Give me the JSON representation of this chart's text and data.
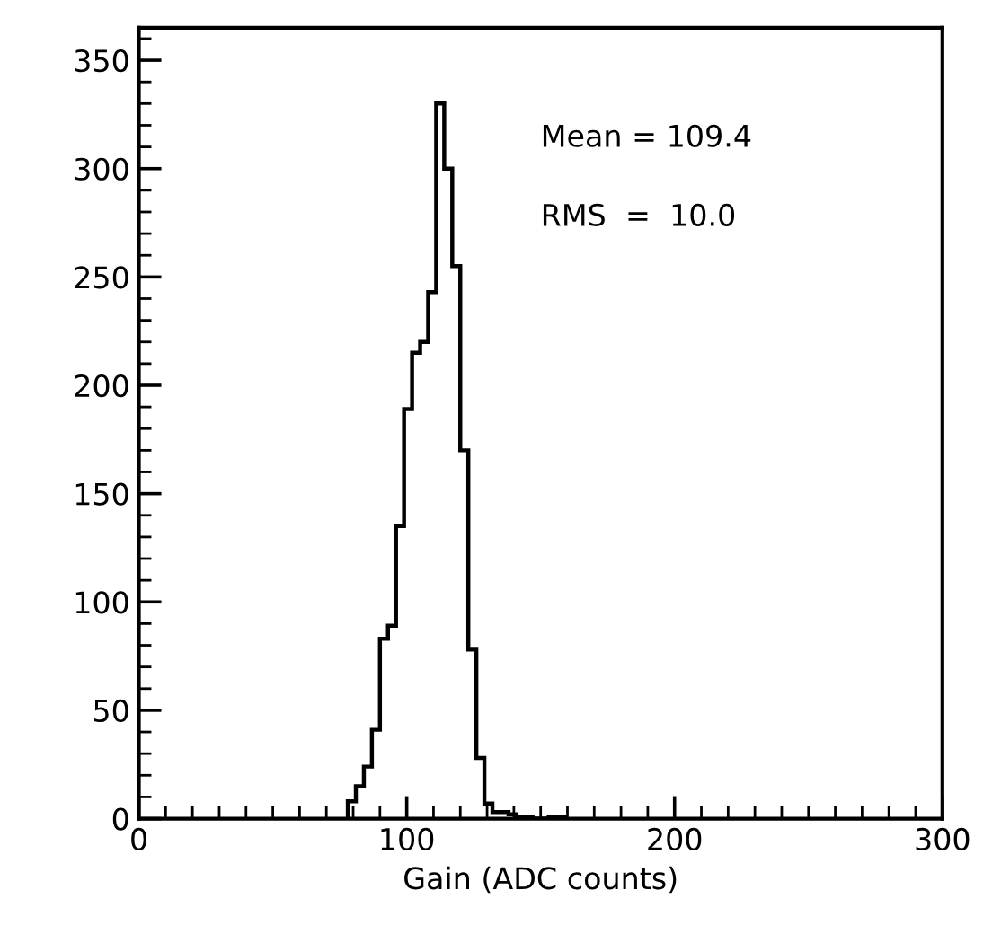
{
  "chart_data": {
    "type": "histogram",
    "xlabel": "Gain (ADC counts)",
    "bins": [
      78,
      81,
      84,
      87,
      90,
      93,
      96,
      99,
      102,
      105,
      108,
      111,
      114,
      117,
      120,
      123,
      126,
      129,
      132,
      135,
      138,
      141,
      144,
      147,
      150,
      153,
      156,
      159
    ],
    "values": [
      8,
      15,
      24,
      41,
      83,
      89,
      135,
      189,
      215,
      220,
      243,
      330,
      300,
      255,
      170,
      78,
      28,
      7,
      3,
      3,
      2,
      1,
      1,
      0,
      0,
      1,
      1
    ],
    "color": "#000000",
    "xlim": [
      0,
      300
    ],
    "xticks": [
      0,
      100,
      200,
      300
    ],
    "ylim": [
      0,
      365
    ],
    "yticks": [
      0,
      50,
      100,
      150,
      200,
      250,
      300,
      350
    ],
    "annotations": [
      "Mean = 109.4",
      "RMS  =  10.0"
    ],
    "grid": false,
    "legend": false
  }
}
